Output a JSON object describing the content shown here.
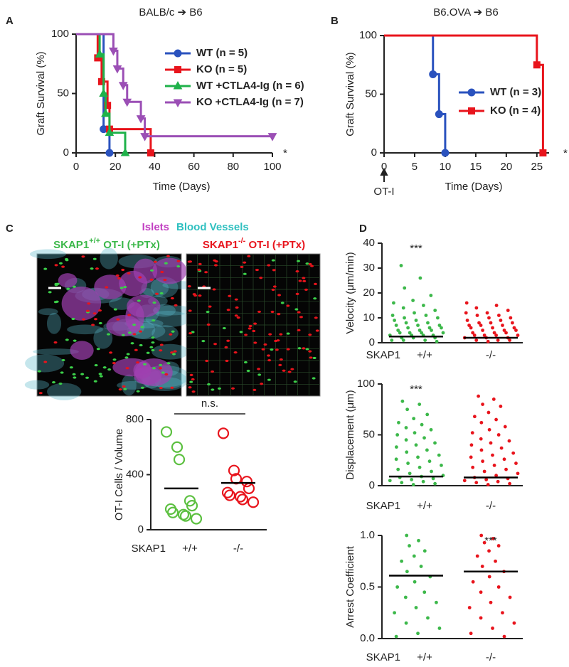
{
  "chart_data": [
    {
      "panel": "A",
      "type": "survival",
      "title": "BALB/c ➔ B6",
      "xlabel": "Time (Days)",
      "ylabel": "Graft Survival (%)",
      "xlim": [
        0,
        100
      ],
      "ylim": [
        0,
        100
      ],
      "xticks": [
        0,
        20,
        40,
        60,
        80,
        100
      ],
      "yticks": [
        0,
        50,
        100
      ],
      "annotation": "*",
      "series": [
        {
          "name": "WT (n = 5)",
          "color": "#2a52be",
          "marker": "circle",
          "x": [
            0,
            14,
            17
          ],
          "values": [
            100,
            20,
            0
          ]
        },
        {
          "name": "KO (n = 5)",
          "color": "#e8141c",
          "marker": "square",
          "x": [
            0,
            11,
            13,
            16,
            17,
            38
          ],
          "values": [
            100,
            80,
            60,
            40,
            20,
            0
          ]
        },
        {
          "name": "WT +CTLA4-Ig (n = 6)",
          "color": "#1fb24a",
          "marker": "triangle-up",
          "x": [
            0,
            12,
            14,
            15,
            17,
            25
          ],
          "values": [
            100,
            83,
            50,
            33,
            17,
            0
          ]
        },
        {
          "name": "KO +CTLA4-Ig (n = 7)",
          "color": "#9b4fb5",
          "marker": "triangle-down",
          "x": [
            0,
            19,
            21,
            24,
            26,
            33,
            35,
            100
          ],
          "values": [
            100,
            86,
            71,
            57,
            43,
            29,
            14,
            14
          ]
        }
      ]
    },
    {
      "panel": "B",
      "type": "survival",
      "title": "B6.OVA ➔ B6",
      "xlabel": "Time (Days)",
      "ylabel": "Graft Survival (%)",
      "xlim": [
        0,
        27
      ],
      "ylim": [
        0,
        100
      ],
      "xticks": [
        0,
        5,
        10,
        15,
        20,
        25
      ],
      "yticks": [
        0,
        50,
        100
      ],
      "annotation": "*",
      "x_annotation": "OT-I",
      "series": [
        {
          "name": "WT (n = 3)",
          "color": "#2a52be",
          "marker": "circle",
          "x": [
            0,
            8,
            9,
            10
          ],
          "values": [
            100,
            67,
            33,
            0
          ]
        },
        {
          "name": "KO (n = 4)",
          "color": "#e8141c",
          "marker": "square",
          "x": [
            0,
            25,
            26
          ],
          "values": [
            100,
            75,
            0
          ]
        }
      ]
    },
    {
      "panel": "C",
      "type": "image",
      "stain_labels": [
        {
          "text": "Islets",
          "color": "#c23fc2"
        },
        {
          "text": "Blood Vessels",
          "color": "#2fc0c0"
        }
      ],
      "images": [
        {
          "label_parts": [
            "SKAP1",
            "+/+",
            " OT-I (+PTx)"
          ],
          "color": "#3cb84a"
        },
        {
          "label_parts": [
            "SKAP1",
            "-/-",
            " OT-I (+PTx)"
          ],
          "color": "#e8141c"
        }
      ]
    },
    {
      "type": "strip",
      "ylabel": "OT-I Cells / Volume",
      "ylim": [
        0,
        800
      ],
      "yticks": [
        0,
        400,
        800
      ],
      "group_label": "SKAP1",
      "categories": [
        "+/+",
        "-/-"
      ],
      "marker": "open-circle",
      "annotation": "n.s.",
      "series": [
        {
          "color": "#5cc040",
          "values": [
            710,
            600,
            510,
            210,
            175,
            150,
            125,
            110,
            100,
            80
          ],
          "mean": 300
        },
        {
          "color": "#e8141c",
          "values": [
            700,
            430,
            370,
            350,
            300,
            270,
            250,
            240,
            220,
            200
          ],
          "mean": 340
        }
      ]
    },
    {
      "panel": "D",
      "type": "strip",
      "ylabel": "Velocity (μm/min)",
      "ylim": [
        0,
        40
      ],
      "yticks": [
        0,
        10,
        20,
        30,
        40
      ],
      "group_label": "SKAP1",
      "categories": [
        "+/+",
        "-/-"
      ],
      "marker": "dot",
      "series": [
        {
          "color": "#3cb84a",
          "annotation": "***",
          "mean": 2.5,
          "values": [
            31,
            26,
            22,
            19,
            17,
            16,
            15,
            14,
            13,
            12,
            11,
            11,
            10,
            10,
            9,
            9,
            8,
            8,
            7,
            7,
            7,
            6,
            6,
            6,
            5,
            5,
            5,
            4,
            4,
            4,
            4,
            3,
            3,
            3,
            3,
            2,
            2,
            2,
            1,
            1,
            1,
            0.5
          ]
        },
        {
          "color": "#e8141c",
          "mean": 2,
          "values": [
            16,
            15,
            14,
            13,
            12,
            12,
            11,
            11,
            10,
            10,
            9,
            9,
            8,
            8,
            8,
            7,
            7,
            7,
            6,
            6,
            6,
            5,
            5,
            5,
            4,
            4,
            4,
            3,
            3,
            3,
            3,
            2,
            2,
            2,
            1,
            1,
            1,
            0.5
          ]
        }
      ]
    },
    {
      "type": "strip",
      "ylabel": "Displacement (μm)",
      "ylim": [
        0,
        100
      ],
      "yticks": [
        0,
        50,
        100
      ],
      "group_label": "SKAP1",
      "categories": [
        "+/+",
        "-/-"
      ],
      "marker": "dot",
      "series": [
        {
          "color": "#3cb84a",
          "annotation": "***",
          "mean": 9,
          "values": [
            83,
            80,
            75,
            70,
            66,
            62,
            60,
            57,
            55,
            52,
            50,
            47,
            45,
            42,
            40,
            38,
            35,
            33,
            30,
            28,
            26,
            24,
            22,
            20,
            18,
            16,
            14,
            12,
            10,
            9,
            8,
            7,
            6,
            5,
            4,
            3,
            2,
            1
          ]
        },
        {
          "color": "#e8141c",
          "mean": 8,
          "values": [
            88,
            85,
            80,
            78,
            72,
            68,
            65,
            62,
            58,
            55,
            52,
            50,
            46,
            44,
            42,
            40,
            37,
            35,
            32,
            30,
            28,
            26,
            24,
            22,
            20,
            18,
            16,
            14,
            12,
            10,
            8,
            7,
            6,
            5,
            4,
            3,
            2,
            1
          ]
        }
      ]
    },
    {
      "type": "strip",
      "ylabel": "Arrest Coefficient",
      "ylim": [
        0,
        1
      ],
      "yticks": [
        {
          "value": 0,
          "label": "0.0"
        },
        {
          "value": 0.5,
          "label": "0.5"
        },
        {
          "value": 1,
          "label": "1.0"
        }
      ],
      "group_label": "SKAP1",
      "categories": [
        "+/+",
        "-/-"
      ],
      "marker": "dot",
      "series": [
        {
          "color": "#3cb84a",
          "mean": 0.61,
          "values": [
            1,
            0.95,
            0.9,
            0.85,
            0.8,
            0.75,
            0.7,
            0.65,
            0.6,
            0.55,
            0.5,
            0.45,
            0.4,
            0.35,
            0.3,
            0.25,
            0.2,
            0.15,
            0.1,
            0.05,
            0.02
          ]
        },
        {
          "color": "#e8141c",
          "annotation": "***",
          "mean": 0.65,
          "values": [
            1,
            0.97,
            0.93,
            0.9,
            0.85,
            0.8,
            0.75,
            0.7,
            0.65,
            0.6,
            0.55,
            0.5,
            0.45,
            0.4,
            0.35,
            0.3,
            0.25,
            0.2,
            0.15,
            0.1,
            0.05,
            0.02
          ]
        }
      ]
    }
  ]
}
